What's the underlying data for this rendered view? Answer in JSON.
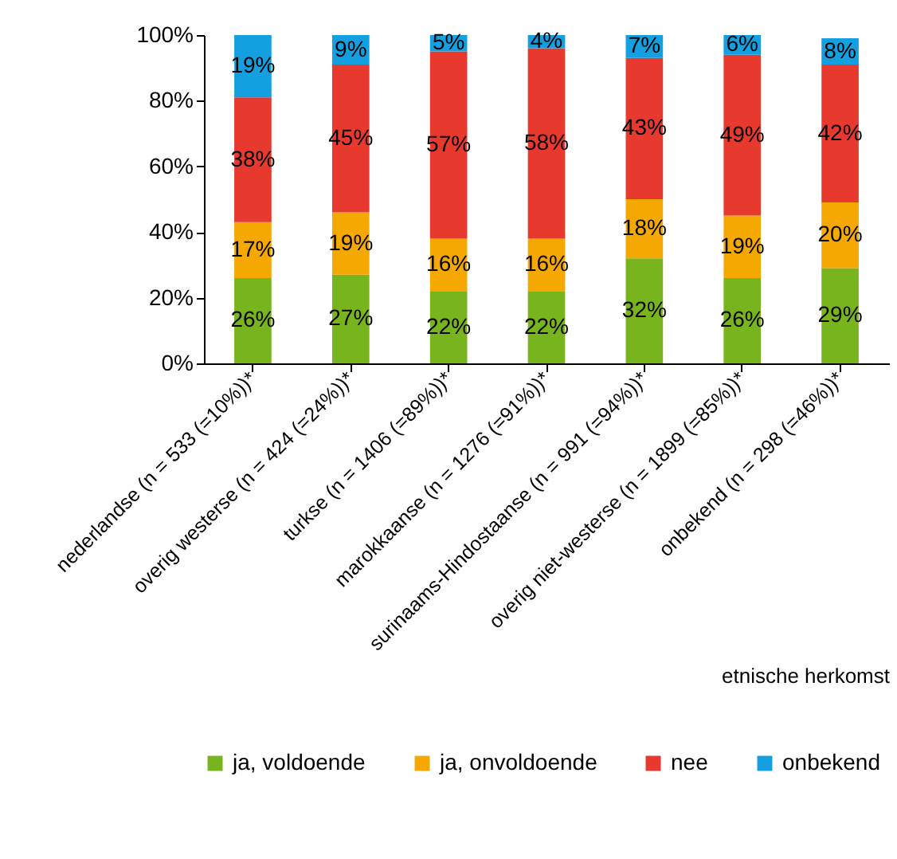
{
  "chart_data": {
    "type": "bar",
    "stacked": true,
    "xlabel": "etnische herkomst",
    "legend": "bottom",
    "categories": [
      "nederlandse (n = 533 (=10%))*",
      "overig westerse (n = 424 (=24%))*",
      "turkse (n = 1406 (=89%))*",
      "marokkaanse (n = 1276 (=91%))*",
      "surinaams-Hindostaanse (n = 991 (=94%))*",
      "overig niet-westerse (n = 1899 (=85%))*",
      "onbekend (n = 298 (=46%))*"
    ],
    "ylim": [
      0,
      100
    ],
    "yticks": [
      {
        "value": 0,
        "label": "0%"
      },
      {
        "value": 20,
        "label": "20%"
      },
      {
        "value": 40,
        "label": "40%"
      },
      {
        "value": 60,
        "label": "60%"
      },
      {
        "value": 80,
        "label": "80%"
      },
      {
        "value": 100,
        "label": "100%"
      }
    ],
    "series": [
      {
        "name": "ja, voldoende",
        "color": "#78b41e",
        "values": [
          26,
          27,
          22,
          22,
          32,
          26,
          29
        ],
        "value_labels": [
          "26%",
          "27%",
          "22%",
          "22%",
          "32%",
          "26%",
          "29%"
        ]
      },
      {
        "name": "ja, onvoldoende",
        "color": "#f5a800",
        "values": [
          17,
          19,
          16,
          16,
          18,
          19,
          20
        ],
        "value_labels": [
          "17%",
          "19%",
          "16%",
          "16%",
          "18%",
          "19%",
          "20%"
        ]
      },
      {
        "name": "nee",
        "color": "#e8392e",
        "values": [
          38,
          45,
          57,
          58,
          43,
          49,
          42
        ],
        "value_labels": [
          "38%",
          "45%",
          "57%",
          "58%",
          "43%",
          "49%",
          "42%"
        ]
      },
      {
        "name": "onbekend",
        "color": "#14a0e0",
        "values": [
          19,
          9,
          5,
          4,
          7,
          6,
          8
        ],
        "value_labels": [
          "19%",
          "9%",
          "5%",
          "4%",
          "7%",
          "6%",
          "8%"
        ]
      }
    ]
  }
}
